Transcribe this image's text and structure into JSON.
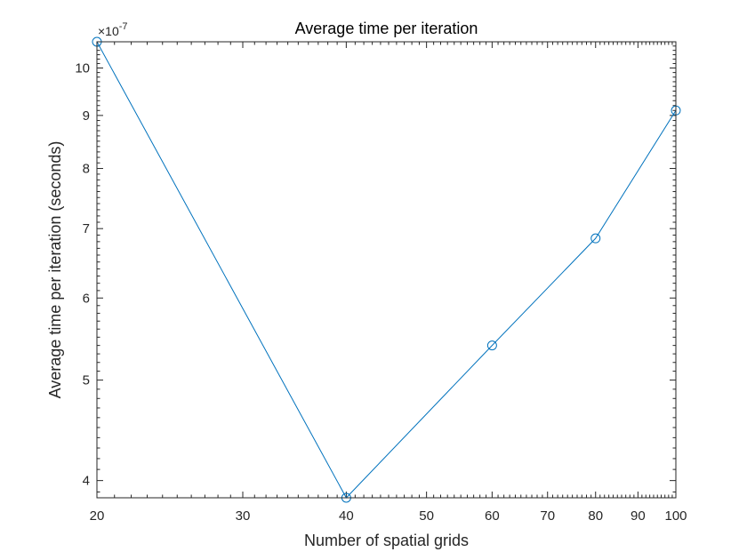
{
  "chart_data": {
    "type": "line",
    "title": "Average time per iteration",
    "xlabel": "Number of spatial grids",
    "ylabel": "Average time per iteration (seconds)",
    "x_scale": "log",
    "y_scale": "log",
    "xlim": [
      20,
      100
    ],
    "ylim": [
      3.85e-07,
      1.06e-06
    ],
    "y_exponent_label": "×10",
    "y_exponent_power": "-7",
    "x_ticks": [
      20,
      30,
      40,
      50,
      60,
      70,
      80,
      90,
      100
    ],
    "x_tick_labels": [
      "20",
      "30",
      "40",
      "50",
      "60",
      "70",
      "80",
      "90",
      "100"
    ],
    "y_ticks": [
      4e-07,
      5e-07,
      6e-07,
      7e-07,
      8e-07,
      9e-07,
      1e-06
    ],
    "y_tick_labels": [
      "4",
      "5",
      "6",
      "7",
      "8",
      "9",
      "10"
    ],
    "series": [
      {
        "x": [
          20,
          40,
          60,
          80,
          100
        ],
        "y": [
          1.06e-06,
          3.85e-07,
          5.4e-07,
          6.85e-07,
          9.1e-07
        ],
        "color": "#0072BD",
        "marker": "circle"
      }
    ],
    "grid": false,
    "box": true
  }
}
